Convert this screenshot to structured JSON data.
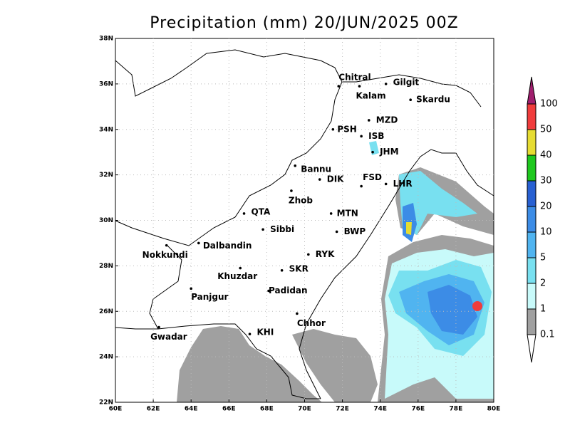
{
  "chart_data": {
    "type": "map",
    "title": "Precipitation (mm) 20/JUN/2025 00Z",
    "xlim": [
      60,
      80
    ],
    "ylim": [
      22,
      38
    ],
    "xticks": [
      {
        "value": 60,
        "label": "60E"
      },
      {
        "value": 62,
        "label": "62E"
      },
      {
        "value": 64,
        "label": "64E"
      },
      {
        "value": 66,
        "label": "66E"
      },
      {
        "value": 68,
        "label": "68E"
      },
      {
        "value": 70,
        "label": "70E"
      },
      {
        "value": 72,
        "label": "72E"
      },
      {
        "value": 74,
        "label": "74E"
      },
      {
        "value": 76,
        "label": "76E"
      },
      {
        "value": 78,
        "label": "78E"
      },
      {
        "value": 80,
        "label": "80E"
      }
    ],
    "yticks": [
      {
        "value": 22,
        "label": "22N"
      },
      {
        "value": 24,
        "label": "24N"
      },
      {
        "value": 26,
        "label": "26N"
      },
      {
        "value": 28,
        "label": "28N"
      },
      {
        "value": 30,
        "label": "30N"
      },
      {
        "value": 32,
        "label": "32N"
      },
      {
        "value": 34,
        "label": "34N"
      },
      {
        "value": 36,
        "label": "36N"
      },
      {
        "value": 38,
        "label": "38N"
      }
    ],
    "grid": true,
    "cities": {
      "names": [
        "Chitral",
        "Gilgit",
        "Kalam",
        "Skardu",
        "MZD",
        "PSH",
        "ISB",
        "JHM",
        "Bannu",
        "DIK",
        "FSD",
        "LHR",
        "Zhob",
        "QTA",
        "MTN",
        "Sibbi",
        "BWP",
        "Nokkundi",
        "Dalbandin",
        "RYK",
        "Khuzdar",
        "SKR",
        "Panjgur",
        "Padidan",
        "Chhor",
        "Gwadar",
        "KHI"
      ],
      "lon": [
        71.8,
        74.3,
        72.9,
        75.6,
        73.4,
        71.5,
        73.0,
        73.6,
        69.5,
        70.8,
        73.0,
        74.3,
        69.3,
        66.8,
        71.4,
        67.8,
        71.7,
        62.7,
        64.4,
        70.2,
        66.6,
        68.8,
        64.0,
        68.1,
        69.6,
        62.3,
        67.1
      ],
      "lat": [
        35.9,
        36.0,
        35.9,
        35.3,
        34.4,
        34.0,
        33.7,
        33.0,
        32.4,
        31.8,
        31.5,
        31.6,
        31.3,
        30.3,
        30.3,
        29.6,
        29.5,
        28.9,
        29.0,
        28.5,
        27.9,
        27.8,
        27.0,
        26.9,
        25.9,
        25.3,
        25.0
      ]
    },
    "colorbar": {
      "levels": [
        0.1,
        1,
        2,
        5,
        10,
        20,
        30,
        40,
        50,
        100
      ],
      "colors": [
        "#ffffff",
        "#a0a0a0",
        "#c8fafa",
        "#78e0f0",
        "#50b4f0",
        "#3c8ce6",
        "#2860d2",
        "#1ec81e",
        "#e6dc32",
        "#f03c3c",
        "#a01e6e"
      ]
    }
  }
}
